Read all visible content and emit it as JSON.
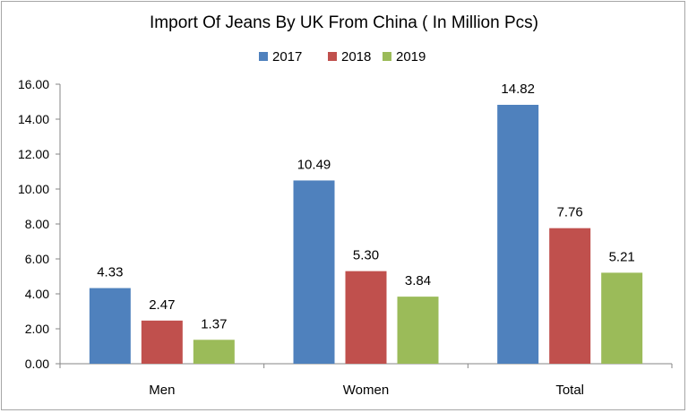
{
  "chart_data": {
    "type": "bar",
    "title": "Import Of Jeans By UK From China ( In Million Pcs)",
    "categories": [
      "Men",
      "Women",
      "Total"
    ],
    "series": [
      {
        "name": "2017",
        "color": "#4f81bd",
        "values": [
          4.33,
          10.49,
          14.82
        ],
        "labels": [
          "4.33",
          "10.49",
          "14.82"
        ]
      },
      {
        "name": "2018",
        "color": "#c0504d",
        "values": [
          2.47,
          5.3,
          7.76
        ],
        "labels": [
          "2.47",
          "5.30",
          "7.76"
        ]
      },
      {
        "name": "2019",
        "color": "#9bbb59",
        "values": [
          1.37,
          3.84,
          5.21
        ],
        "labels": [
          "1.37",
          "3.84",
          "5.21"
        ]
      }
    ],
    "ylim": [
      0,
      16
    ],
    "yticks": [
      "0.00",
      "2.00",
      "4.00",
      "6.00",
      "8.00",
      "10.00",
      "12.00",
      "14.00",
      "16.00"
    ],
    "legend_position": "top",
    "grid": false,
    "xlabel": "",
    "ylabel": ""
  }
}
